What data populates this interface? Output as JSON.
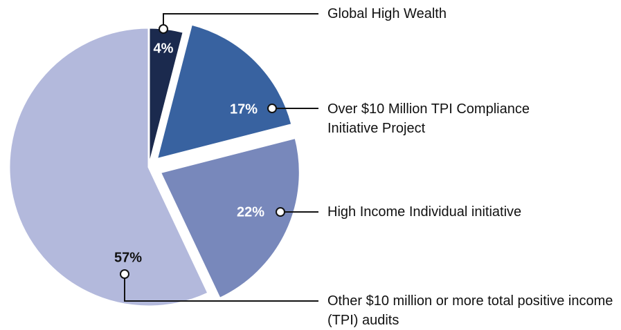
{
  "chart_data": {
    "type": "pie",
    "categories": [
      "Global High Wealth",
      "Over $10 Million TPI Compliance Initiative Project",
      "High Income Individual initiative",
      "Other $10 million or more total positive income (TPI) audits"
    ],
    "values": [
      4,
      17,
      22,
      57
    ],
    "value_labels": [
      "4%",
      "17%",
      "22%",
      "57%"
    ],
    "colors": [
      "#1b2a4e",
      "#3862a0",
      "#7888bb",
      "#b3b9dc"
    ]
  }
}
